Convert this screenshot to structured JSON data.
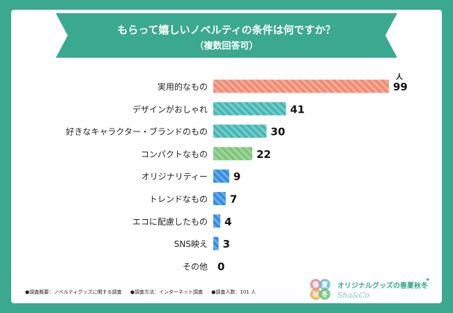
{
  "chart_data": {
    "type": "bar",
    "orientation": "horizontal",
    "title": "もらって嬉しいノベルティの条件は何ですか？",
    "subtitle": "（複数回答可）",
    "unit_label": "人",
    "categories": [
      "実用的なもの",
      "デザインがおしゃれ",
      "好きなキャラクター・ブランドのもの",
      "コンパクトなもの",
      "オリジナリティー",
      "トレンドなもの",
      "エコに配慮したもの",
      "SNS映え",
      "その他"
    ],
    "values": [
      99,
      41,
      30,
      22,
      9,
      7,
      4,
      3,
      0
    ],
    "colors": [
      "#f08a72",
      "#41b6b3",
      "#41b6b3",
      "#7cc576",
      "#2e8be0",
      "#2e8be0",
      "#2e8be0",
      "#2e8be0",
      "#2e8be0"
    ],
    "xlim": [
      0,
      99
    ]
  },
  "footnotes": [
    "●調査概要：ノベルティグッズに関する調査",
    "●調査方法：インターネット調査",
    "●調査人数：101 人"
  ],
  "logo": {
    "name": "オリジナルグッズの春夏秋冬",
    "brand": "Sha&Co",
    "seasons": [
      "春",
      "夏",
      "秋",
      "冬"
    ],
    "colors": [
      "#e4869a",
      "#69b9de",
      "#e6a651",
      "#6bbf7a"
    ]
  }
}
